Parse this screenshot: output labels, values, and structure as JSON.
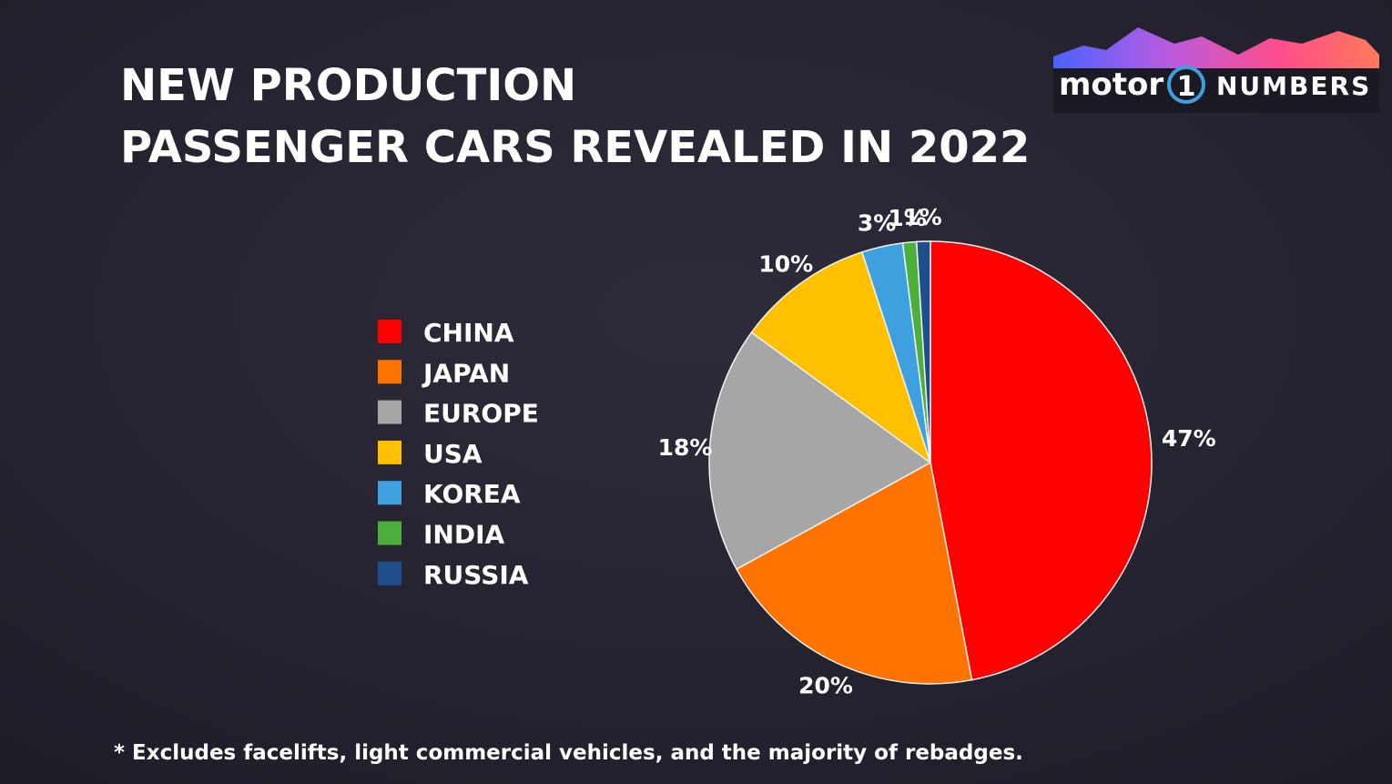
{
  "chart_data": {
    "type": "pie",
    "title": [
      "NEW PRODUCTION",
      "PASSENGER CARS REVEALED IN 2022"
    ],
    "categories": [
      "CHINA",
      "JAPAN",
      "EUROPE",
      "USA",
      "KOREA",
      "INDIA",
      "RUSSIA"
    ],
    "values": [
      47,
      20,
      18,
      10,
      3,
      1,
      1
    ],
    "value_labels": [
      "47%",
      "20%",
      "18%",
      "10%",
      "3%",
      "1%",
      "1%"
    ],
    "colors": [
      "#ff0000",
      "#ff7300",
      "#a6a6a6",
      "#ffc000",
      "#3fa0e0",
      "#4caf3a",
      "#1f4e8c"
    ],
    "legend": "left",
    "footnote": "* Excludes facelifts, light commercial vehicles, and the majority of rebadges."
  },
  "logo": {
    "brand": "motor",
    "mark": "1",
    "product": "NUMBERS"
  }
}
